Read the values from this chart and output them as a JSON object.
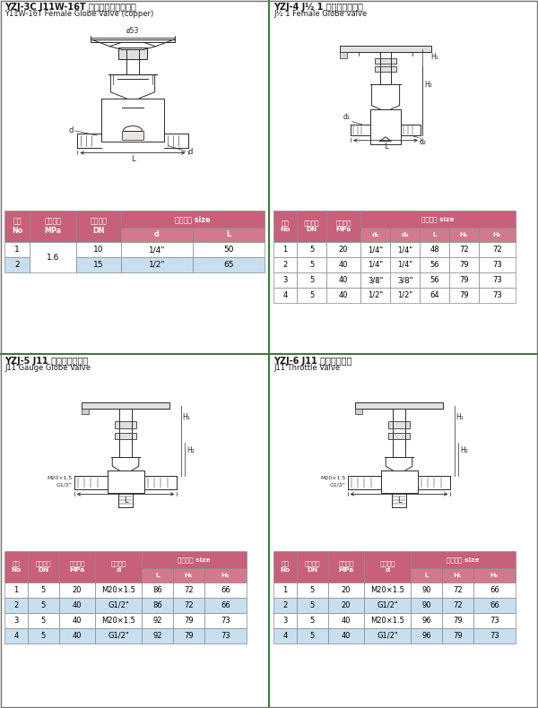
{
  "bg_color": "#f0f0f0",
  "white": "#ffffff",
  "pink_header": "#c8607a",
  "pink_subheader": "#d4708a",
  "blue_light": "#cce0f0",
  "text_dark": "#1a1a1a",
  "green_line": "#3a7a3a",
  "line_color": "#333333",
  "section1": {
    "title_cn": "YZJ-3C J11W-16T 型内螺纹铜制截止阀",
    "title_en": "Y11W-16T Female Globe Valve (copper)",
    "col_headers": [
      "序号\nNo",
      "工作压力\nMPa",
      "公称通径\nDN",
      "外形尺寸 size"
    ],
    "sub_headers": [
      "d",
      "L"
    ],
    "rows": [
      [
        "1",
        "1.6",
        "10",
        "1/4\"",
        "50"
      ],
      [
        "2",
        "1.6",
        "15",
        "1/2\"",
        "65"
      ]
    ]
  },
  "section2": {
    "title_cn": "YZJ-4 J½ 1 型内螺纹截止阀",
    "title_en": "J½ 1 Female Globe valve",
    "col_headers": [
      "序号\nNo",
      "公称通径\nDN",
      "工作压力\nMPa",
      "外形尺寸 size"
    ],
    "sub_headers": [
      "d₁",
      "d₂",
      "L",
      "H₁",
      "H₂"
    ],
    "rows": [
      [
        "1",
        "5",
        "20",
        "1/4\"",
        "1/4\"",
        "48",
        "72",
        "72"
      ],
      [
        "2",
        "5",
        "40",
        "1/4\"",
        "1/4\"",
        "56",
        "79",
        "73"
      ],
      [
        "3",
        "5",
        "40",
        "3/8\"",
        "3/8\"",
        "56",
        "79",
        "73"
      ],
      [
        "4",
        "5",
        "40",
        "1/2\"",
        "1/2\"",
        "64",
        "79",
        "73"
      ]
    ]
  },
  "section3": {
    "title_cn": "YZJ-5 J11 型压力表截止阀",
    "title_en": "J11 Gauge Globe Valve",
    "col_headers": [
      "序号\nNo",
      "公称通径\nDN",
      "工作压力\nMPa",
      "表头螺纹\nd",
      "外形尺寸 size"
    ],
    "sub_headers": [
      "L",
      "H₁",
      "H₂"
    ],
    "rows": [
      [
        "1",
        "5",
        "20",
        "M20×1.5",
        "86",
        "72",
        "66"
      ],
      [
        "2",
        "5",
        "40",
        "G1/2\"",
        "86",
        "72",
        "66"
      ],
      [
        "3",
        "5",
        "40",
        "M20×1.5",
        "92",
        "79",
        "73"
      ],
      [
        "4",
        "5",
        "40",
        "G1/2\"",
        "92",
        "79",
        "73"
      ]
    ]
  },
  "section4": {
    "title_cn": "YZJ-6 J11 型节流截止阀",
    "title_en": "J11 Throttle Valve",
    "col_headers": [
      "序号\nNo",
      "公称通径\nDN",
      "工作压力\nMPa",
      "表头螺纹\nd",
      "外形尺寸 size"
    ],
    "sub_headers": [
      "L",
      "H₁",
      "H₂"
    ],
    "rows": [
      [
        "1",
        "5",
        "20",
        "M20×1.5",
        "90",
        "72",
        "66"
      ],
      [
        "2",
        "5",
        "20",
        "G1/2\"",
        "90",
        "72",
        "66"
      ],
      [
        "3",
        "5",
        "40",
        "M20×1.5",
        "96",
        "79",
        "73"
      ],
      [
        "4",
        "5",
        "40",
        "G1/2\"",
        "96",
        "79",
        "73"
      ]
    ]
  }
}
